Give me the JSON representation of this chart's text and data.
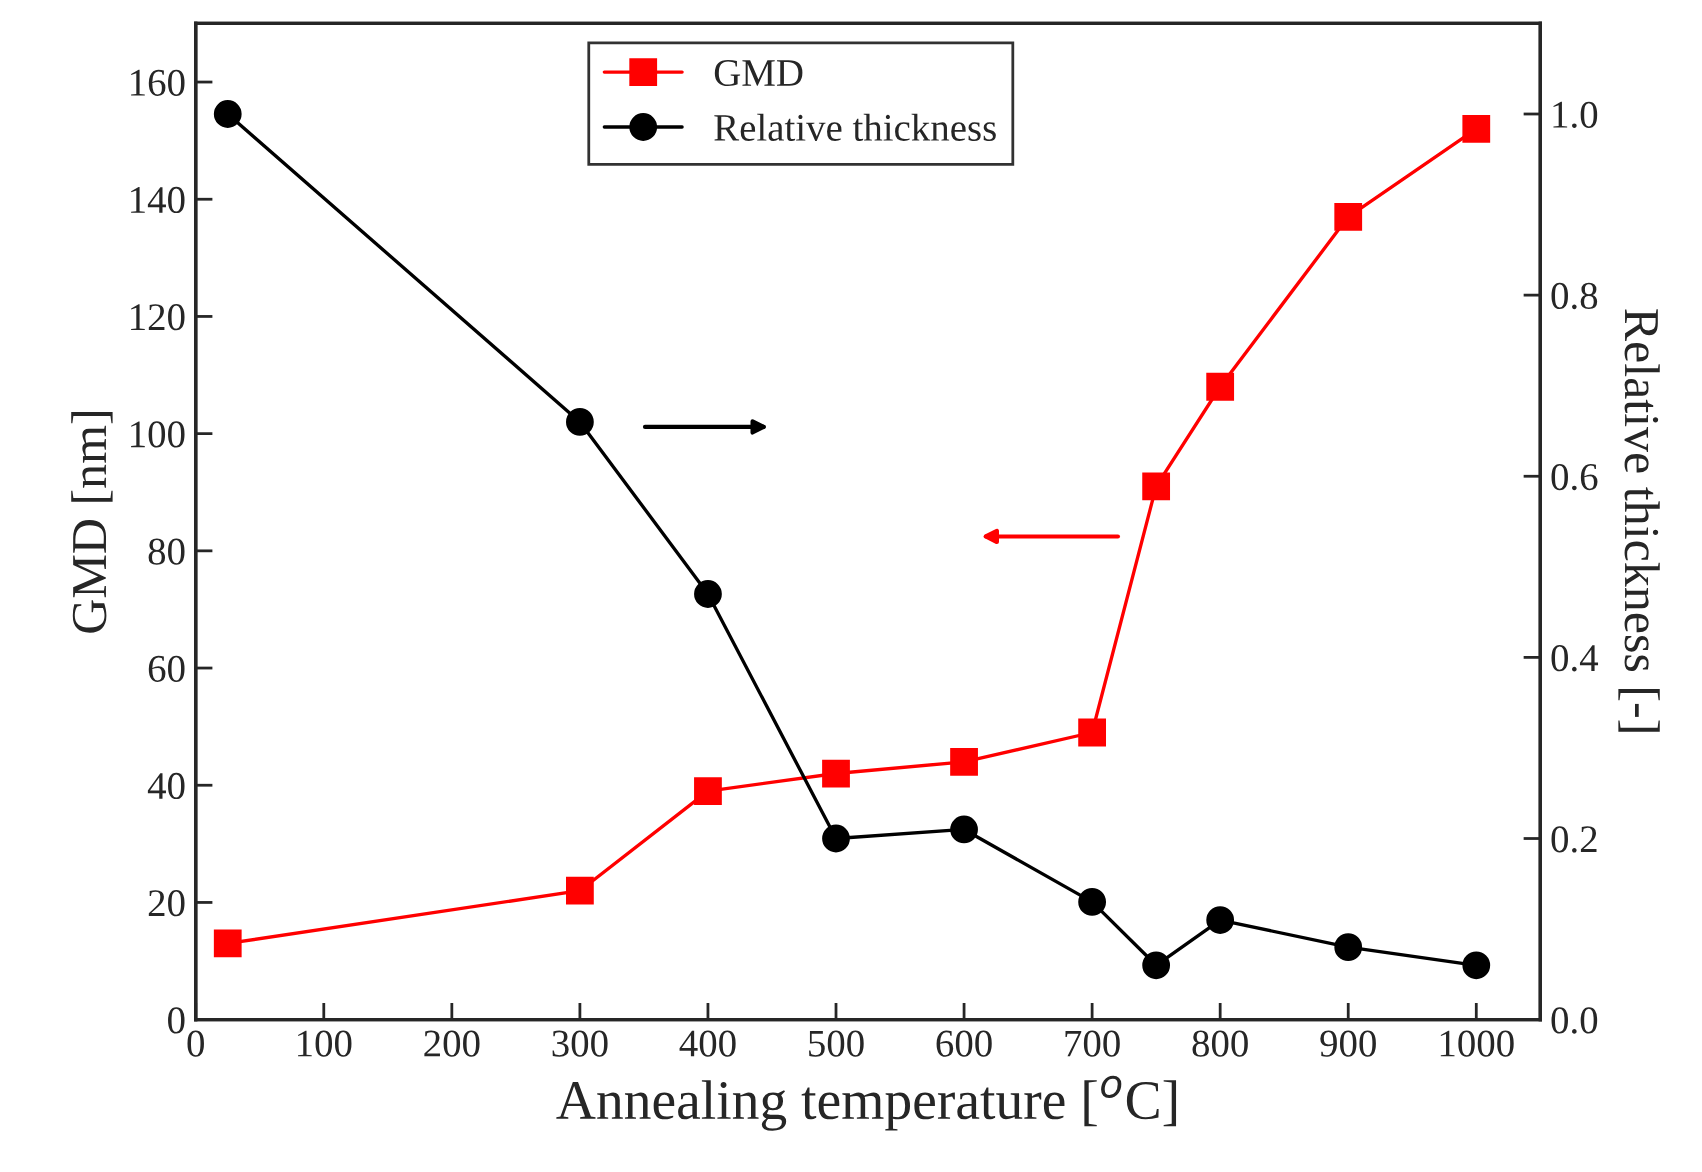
{
  "chart_data": {
    "type": "line",
    "xlabel": "Annealing temperature [$^{o}$C]",
    "ylabel": "GMD [nm]",
    "y2label": "Relative thickness [-]",
    "x": [
      25,
      300,
      400,
      500,
      600,
      700,
      750,
      800,
      900,
      1000
    ],
    "series": [
      {
        "name": "GMD",
        "color": "#ff0000",
        "marker": "square",
        "values": [
          13,
          22,
          39,
          42,
          44,
          49,
          91,
          108,
          137,
          152
        ]
      },
      {
        "name": "Relative thickness",
        "color": "#000000",
        "marker": "circle",
        "axis": "y2",
        "values": [
          1.0,
          0.66,
          0.47,
          0.2,
          0.21,
          0.13,
          0.06,
          0.11,
          0.08,
          0.06
        ]
      }
    ],
    "xlim": [
      0,
      1050
    ],
    "xticks": [
      0,
      100,
      200,
      300,
      400,
      500,
      600,
      700,
      800,
      900,
      1000
    ],
    "ylim": [
      0,
      170
    ],
    "yticks": [
      0,
      20,
      40,
      60,
      80,
      100,
      120,
      140,
      160
    ],
    "y2lim": [
      0,
      1.1
    ],
    "y2ticks": [
      {
        "value": 0,
        "label": "0.0"
      },
      0.2,
      0.4,
      0.6,
      0.8,
      {
        "value": 1,
        "label": "1.0"
      }
    ],
    "legend": "top",
    "grid": false
  }
}
